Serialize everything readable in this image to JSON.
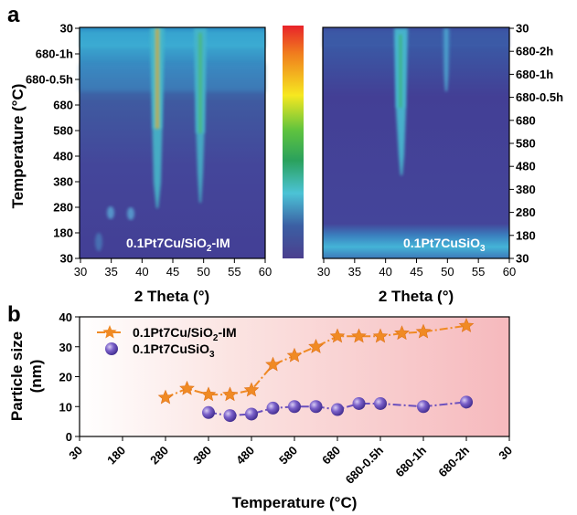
{
  "panel_a": {
    "letter": "a",
    "ylabel": "Temperature (°C)",
    "xlabel": "2 Theta (°)",
    "left_map": {
      "label_main": "0.1Pt7Cu/SiO",
      "label_sub": "2",
      "label_suffix": "-IM",
      "y_ticks": [
        "30",
        "680-1h",
        "680-0.5h",
        "680",
        "580",
        "480",
        "380",
        "280",
        "180",
        "30"
      ],
      "x_ticks": [
        "30",
        "35",
        "40",
        "45",
        "50",
        "55",
        "60"
      ]
    },
    "right_map": {
      "label_main": "0.1Pt7CuSiO",
      "label_sub": "3",
      "y_ticks": [
        "30",
        "680-2h",
        "680-1h",
        "680-0.5h",
        "680",
        "580",
        "480",
        "380",
        "280",
        "180",
        "30"
      ],
      "x_ticks": [
        "30",
        "35",
        "40",
        "45",
        "50",
        "55",
        "60"
      ]
    },
    "colorbar": [
      "#e8232a",
      "#f07d1e",
      "#f6e820",
      "#5fc33e",
      "#2aa15d",
      "#4cc3d6",
      "#3b5fa3",
      "#4b3f8e"
    ]
  },
  "panel_b": {
    "letter": "b",
    "ylabel_line1": "Particle size",
    "ylabel_line2": "(nm)",
    "xlabel": "Temperature (°C)"
  },
  "chart_data": {
    "type": "scatter",
    "categories": [
      "30",
      "180",
      "280",
      "380",
      "480",
      "580",
      "680",
      "680-0.5h",
      "680-1h",
      "680-2h",
      "30"
    ],
    "ylim": [
      0,
      40
    ],
    "y_ticks": [
      0,
      10,
      20,
      30,
      40
    ],
    "legend_position": "top-left",
    "series": [
      {
        "name": "0.1Pt7Cu/SiO2-IM",
        "name_main": "0.1Pt7Cu/SiO",
        "name_sub": "2",
        "name_suffix": "-IM",
        "color": "#f08a24",
        "marker": "star",
        "line": "dash-dot",
        "x": [
          2.0,
          2.5,
          3.0,
          3.5,
          4.0,
          4.5,
          5.0,
          5.5,
          6.0,
          6.5,
          7.0,
          7.5,
          8.0,
          9.0
        ],
        "values": [
          13,
          16,
          14,
          14,
          15.5,
          24,
          27,
          30,
          33.5,
          33.5,
          33.5,
          34.5,
          35,
          37
        ]
      },
      {
        "name": "0.1Pt7CuSiO3",
        "name_main": "0.1Pt7CuSiO",
        "name_sub": "3",
        "color": "#6a4fbd",
        "marker": "sphere",
        "line": "dash-dot",
        "x": [
          3.0,
          3.5,
          4.0,
          4.5,
          5.0,
          5.5,
          6.0,
          6.5,
          7.0,
          8.0,
          9.0
        ],
        "values": [
          8,
          7,
          7.5,
          9.5,
          10,
          10,
          9,
          11,
          11,
          10,
          11.5
        ]
      }
    ]
  }
}
